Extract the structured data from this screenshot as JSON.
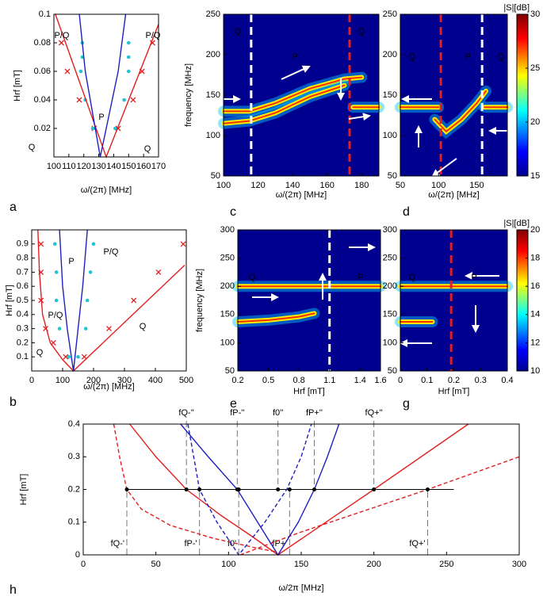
{
  "chart_data": [
    {
      "type": "scatter",
      "panel": "a",
      "xlabel": "ω/(2π) [MHz]",
      "ylabel": "Hrf [mT]",
      "xlim": [
        100,
        170
      ],
      "xticks": [
        100,
        110,
        120,
        130,
        140,
        150,
        160,
        170
      ],
      "ylim": [
        0,
        0.1
      ],
      "yticks": [
        0.02,
        0.04,
        0.06,
        0.08,
        0.1
      ],
      "annotations": [
        "P/Q",
        "P/Q",
        "P",
        "Q",
        "Q"
      ],
      "series": [
        {
          "color": "#e02020",
          "marker": "x",
          "x": [
            105,
            109,
            117,
            127,
            143,
            153,
            159,
            166
          ],
          "values": [
            0.08,
            0.06,
            0.04,
            0.02,
            0.02,
            0.04,
            0.06,
            0.08
          ]
        },
        {
          "color": "#22c4d4",
          "marker": "o",
          "x": [
            119,
            119,
            118,
            121,
            126,
            141,
            147,
            150,
            150,
            150
          ],
          "values": [
            0.08,
            0.07,
            0.06,
            0.04,
            0.02,
            0.02,
            0.04,
            0.06,
            0.07,
            0.08
          ]
        },
        {
          "color": "#e02020",
          "line": "solid",
          "x": [
            101,
            135,
            170
          ],
          "values": [
            0.1,
            0,
            0.093
          ]
        },
        {
          "color": "#2020c0",
          "line": "solid",
          "x": [
            117,
            121,
            126,
            131,
            137,
            143,
            148
          ],
          "values": [
            0.1,
            0.06,
            0.03,
            0,
            0.03,
            0.06,
            0.1
          ]
        }
      ]
    },
    {
      "type": "heatmap",
      "panel": "c",
      "xlabel": "ω/(2π) [MHz]",
      "ylabel": "frequency [MHz]",
      "xlim": [
        100,
        190
      ],
      "xticks": [
        100,
        120,
        140,
        160,
        180
      ],
      "ylim": [
        50,
        250
      ],
      "yticks": [
        50,
        100,
        150,
        200,
        250
      ],
      "annotations": [
        "Q",
        "P",
        "Q"
      ],
      "vlines": [
        {
          "x": 116,
          "color": "#ffffff"
        },
        {
          "x": 173,
          "color": "#e02020"
        }
      ],
      "series": [
        {
          "x": [
            100,
            115,
            130,
            150,
            170,
            180
          ],
          "values": [
            130,
            130,
            140,
            158,
            170,
            172
          ]
        },
        {
          "x": [
            100,
            115,
            130,
            150,
            170
          ],
          "values": [
            115,
            118,
            128,
            148,
            162
          ]
        },
        {
          "x": [
            175,
            190
          ],
          "values": [
            135,
            135
          ]
        }
      ]
    },
    {
      "type": "heatmap",
      "panel": "d",
      "xlabel": "ω/(2π) [MHz]",
      "xlim": [
        50,
        190
      ],
      "xticks": [
        50,
        100,
        150
      ],
      "ylim": [
        50,
        250
      ],
      "yticks": [
        50,
        100,
        150,
        200,
        250
      ],
      "annotations": [
        "Q",
        "P",
        "Q"
      ],
      "vlines": [
        {
          "x": 103,
          "color": "#e02020"
        },
        {
          "x": 157,
          "color": "#ffffff"
        }
      ],
      "colorbar": {
        "label": "|S|[dB]",
        "lim": [
          15,
          30
        ],
        "ticks": [
          15,
          20,
          25,
          30
        ]
      },
      "series": [
        {
          "x": [
            50,
            90,
            100
          ],
          "values": [
            135,
            135,
            135
          ]
        },
        {
          "x": [
            95,
            110,
            130,
            150,
            162
          ],
          "values": [
            120,
            105,
            120,
            140,
            155
          ]
        },
        {
          "x": [
            160,
            190
          ],
          "values": [
            135,
            135
          ]
        }
      ]
    },
    {
      "type": "scatter",
      "panel": "b",
      "xlabel": "ω/(2π) [MHz]",
      "ylabel": "Hrf [mT]",
      "xlim": [
        0,
        500
      ],
      "xticks": [
        0,
        100,
        200,
        300,
        400,
        500
      ],
      "ylim": [
        0,
        1
      ],
      "yticks": [
        0.1,
        0.2,
        0.3,
        0.4,
        0.5,
        0.6,
        0.7,
        0.8,
        0.9
      ],
      "annotations": [
        "P",
        "P/Q",
        "P/Q",
        "Q",
        "Q"
      ],
      "series": [
        {
          "color": "#e02020",
          "marker": "x",
          "x": [
            30,
            30,
            30,
            45,
            70,
            110,
            170,
            250,
            330,
            410,
            490
          ],
          "values": [
            0.9,
            0.7,
            0.5,
            0.3,
            0.2,
            0.1,
            0.1,
            0.3,
            0.5,
            0.7,
            0.9
          ]
        },
        {
          "color": "#22c4d4",
          "marker": "o",
          "x": [
            75,
            80,
            80,
            90,
            120,
            150,
            175,
            180,
            190,
            200
          ],
          "values": [
            0.9,
            0.7,
            0.5,
            0.3,
            0.1,
            0.1,
            0.3,
            0.5,
            0.7,
            0.9
          ]
        },
        {
          "color": "#e02020",
          "line": "solid",
          "x": [
            20,
            25,
            35,
            60,
            100,
            135,
            495
          ],
          "values": [
            1,
            0.7,
            0.4,
            0.2,
            0.08,
            0,
            0.75
          ]
        },
        {
          "color": "#2020c0",
          "line": "solid",
          "x": [
            90,
            100,
            115,
            135,
            150,
            165,
            180
          ],
          "values": [
            1,
            0.6,
            0.3,
            0,
            0.3,
            0.6,
            1
          ]
        }
      ]
    },
    {
      "type": "heatmap",
      "panel": "e",
      "xlabel": "Hrf [mT]",
      "ylabel": "frequency [MHz]",
      "xlim": [
        0.2,
        1.6
      ],
      "xticks": [
        0.2,
        0.5,
        0.8,
        1.1,
        1.4,
        1.6
      ],
      "ylim": [
        50,
        300
      ],
      "yticks": [
        50,
        100,
        150,
        200,
        250,
        300
      ],
      "annotations": [
        "Q",
        "P"
      ],
      "vlines": [
        {
          "x": 1.1,
          "color": "#ffffff"
        }
      ],
      "series": [
        {
          "x": [
            0.2,
            1.6
          ],
          "values": [
            200,
            200
          ]
        },
        {
          "x": [
            0.2,
            0.5,
            0.8,
            0.95
          ],
          "values": [
            137,
            140,
            146,
            152
          ]
        }
      ]
    },
    {
      "type": "heatmap",
      "panel": "g",
      "xlabel": "Hrf [mT]",
      "xlim": [
        0,
        0.4
      ],
      "xticks": [
        0,
        0.1,
        0.2,
        0.3,
        0.4
      ],
      "ylim": [
        50,
        300
      ],
      "yticks": [
        50,
        100,
        150,
        200,
        250,
        300
      ],
      "annotations": [
        "Q",
        "P"
      ],
      "vlines": [
        {
          "x": 0.19,
          "color": "#e02020"
        }
      ],
      "colorbar": {
        "label": "|S|[dB]",
        "lim": [
          10,
          20
        ],
        "ticks": [
          10,
          12,
          14,
          16,
          18,
          20
        ]
      },
      "series": [
        {
          "x": [
            0,
            0.4
          ],
          "values": [
            200,
            200
          ]
        },
        {
          "x": [
            0,
            0.12
          ],
          "values": [
            137,
            137
          ]
        }
      ]
    },
    {
      "type": "line",
      "panel": "h",
      "xlabel": "ω/2π [MHz]",
      "ylabel": "Hrf [mT]",
      "xlim": [
        0,
        300
      ],
      "xticks": [
        0,
        50,
        100,
        150,
        200,
        250,
        300
      ],
      "ylim": [
        0,
        0.4
      ],
      "yticks": [
        0,
        0.1,
        0.2,
        0.3,
        0.4
      ],
      "hline": {
        "y": 0.2,
        "x": [
          30,
          255
        ]
      },
      "lower_markers": [
        {
          "label": "fQ-'",
          "x": 30
        },
        {
          "label": "fP-'",
          "x": 80
        },
        {
          "label": "f0'",
          "x": 107
        },
        {
          "label": "fP+'",
          "x": 142
        },
        {
          "label": "fQ+'",
          "x": 237
        }
      ],
      "upper_markers": [
        {
          "label": "fQ-''",
          "x": 71
        },
        {
          "label": "fP-''",
          "x": 106
        },
        {
          "label": "f0''",
          "x": 134
        },
        {
          "label": "fP+''",
          "x": 159
        },
        {
          "label": "fQ+''",
          "x": 200
        }
      ],
      "series": [
        {
          "color": "#e02020",
          "line": "solid",
          "x": [
            32,
            50,
            71,
            95,
            115,
            134,
            200,
            265
          ],
          "values": [
            0.4,
            0.3,
            0.2,
            0.12,
            0.06,
            0,
            0.2,
            0.4
          ]
        },
        {
          "color": "#e02020",
          "line": "dash",
          "x": [
            21,
            25,
            30,
            40,
            60,
            90,
            120,
            132
          ],
          "values": [
            0.4,
            0.3,
            0.2,
            0.14,
            0.09,
            0.05,
            0.02,
            0.01
          ]
        },
        {
          "color": "#e02020",
          "line": "dash",
          "x": [
            108,
            150,
            237,
            300
          ],
          "values": [
            0,
            0.07,
            0.2,
            0.3
          ]
        },
        {
          "color": "#2020c0",
          "line": "solid",
          "x": [
            67,
            86,
            106,
            120,
            134,
            148,
            159,
            168,
            176
          ],
          "values": [
            0.4,
            0.3,
            0.2,
            0.1,
            0,
            0.1,
            0.2,
            0.3,
            0.4
          ]
        },
        {
          "color": "#2020c0",
          "line": "dash",
          "x": [
            72,
            76,
            80,
            92,
            107,
            125,
            140,
            150,
            157
          ],
          "values": [
            0.4,
            0.3,
            0.2,
            0.1,
            0,
            0.1,
            0.2,
            0.3,
            0.4
          ]
        }
      ]
    }
  ]
}
